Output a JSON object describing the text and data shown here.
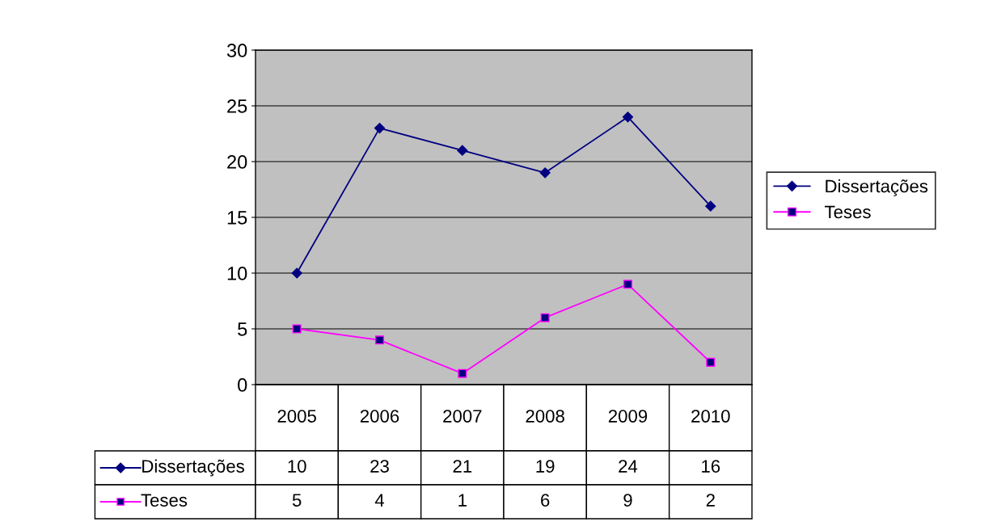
{
  "chart_data": {
    "type": "line",
    "categories": [
      "2005",
      "2006",
      "2007",
      "2008",
      "2009",
      "2010"
    ],
    "series": [
      {
        "name": "Dissertações",
        "color": "#000080",
        "marker": "diamond",
        "values": [
          10,
          23,
          21,
          19,
          24,
          16
        ]
      },
      {
        "name": "Teses",
        "color": "#ff00ff",
        "marker": "square",
        "values": [
          5,
          4,
          1,
          6,
          9,
          2
        ]
      }
    ],
    "ylim": [
      0,
      30
    ],
    "yticks": [
      0,
      5,
      10,
      15,
      20,
      25,
      30
    ],
    "grid": "y",
    "legend": "right",
    "data_labels": true
  }
}
